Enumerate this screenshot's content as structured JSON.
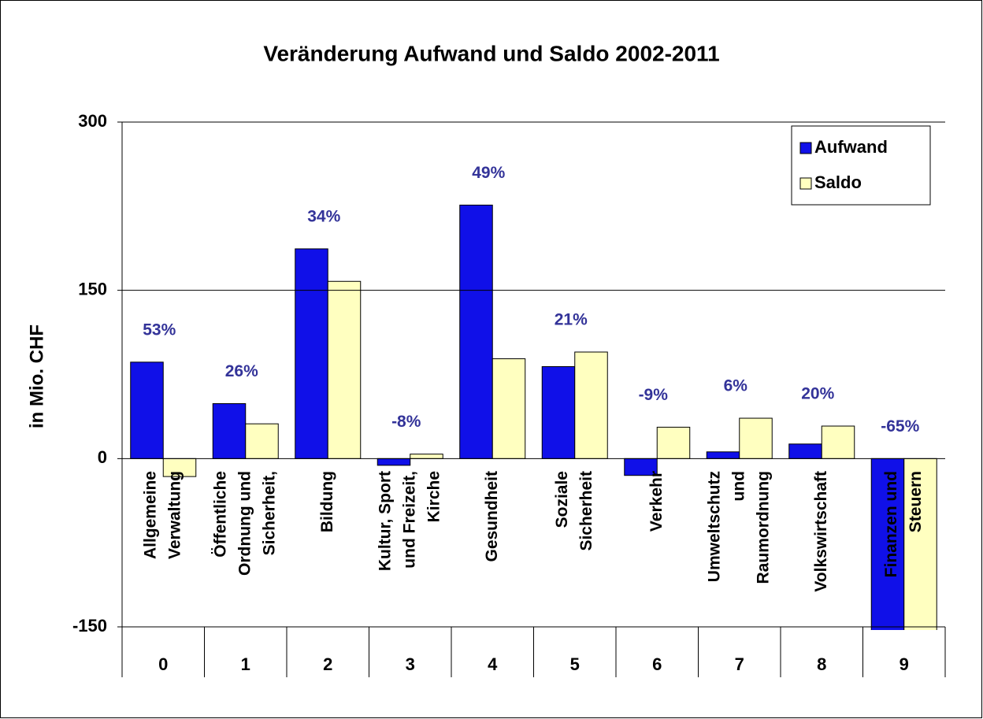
{
  "chart_data": {
    "type": "bar",
    "title": "Veränderung Aufwand und Saldo 2002-2011",
    "y_label": "in Mio. CHF",
    "categories": [
      "0",
      "1",
      "2",
      "3",
      "4",
      "5",
      "6",
      "7",
      "8",
      "9"
    ],
    "category_names": [
      [
        "Allgemeine",
        "Verwaltung"
      ],
      [
        "Öffentliche",
        "Ordnung und",
        "Sicherheit,"
      ],
      [
        "Bildung"
      ],
      [
        "Kultur, Sport",
        "und  Freizeit,",
        "Kirche"
      ],
      [
        "Gesundheit"
      ],
      [
        "Soziale",
        "Sicherheit"
      ],
      [
        "Verkehr"
      ],
      [
        "Umweltschutz",
        "und",
        "Raumordnung"
      ],
      [
        "Volkswirtschaft"
      ],
      [
        "Finanzen und",
        "Steuern"
      ]
    ],
    "annotations": [
      "53%",
      "26%",
      "34%",
      "-8%",
      "49%",
      "21%",
      "-9%",
      "6%",
      "20%",
      "-65%"
    ],
    "series": [
      {
        "name": "Aufwand",
        "color": "#1010e8",
        "values": [
          86,
          49,
          187,
          -6,
          226,
          82,
          -15,
          6,
          13,
          -160
        ]
      },
      {
        "name": "Saldo",
        "color": "#ffffc0",
        "values": [
          -16,
          31,
          158,
          4,
          89,
          95,
          28,
          36,
          29,
          -160
        ]
      }
    ],
    "ylim": [
      -150,
      300
    ],
    "yticks": [
      -150,
      0,
      150,
      300
    ],
    "grid": true,
    "legend": "upper right"
  }
}
